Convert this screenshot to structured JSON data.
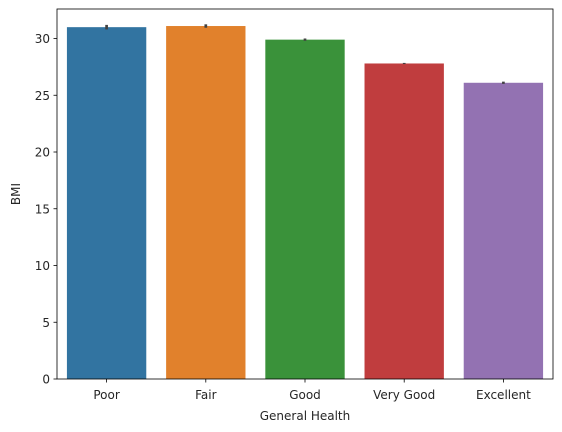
{
  "chart_data": {
    "type": "bar",
    "title": "",
    "xlabel": "General Health",
    "ylabel": "BMI",
    "categories": [
      "Poor",
      "Fair",
      "Good",
      "Very Good",
      "Excellent"
    ],
    "values": [
      31.0,
      31.1,
      29.9,
      27.8,
      26.1
    ],
    "error_low": [
      30.8,
      30.95,
      29.8,
      27.75,
      26.0
    ],
    "error_high": [
      31.2,
      31.25,
      30.0,
      27.85,
      26.2
    ],
    "colors": [
      "#3274a1",
      "#e1812c",
      "#3a923a",
      "#c03d3e",
      "#9372b2"
    ],
    "ylim": [
      0,
      32.6
    ],
    "yticks": [
      0,
      5,
      10,
      15,
      20,
      25,
      30
    ],
    "grid": false,
    "legend": "none"
  }
}
